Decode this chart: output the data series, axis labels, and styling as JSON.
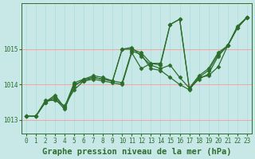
{
  "background_color": "#c8e8e8",
  "grid_color_h": "#ff9999",
  "grid_color_v": "#aadddd",
  "line_color": "#2d6e2d",
  "marker_style": "D",
  "marker_size": 2.5,
  "line_width": 0.9,
  "title": "Graphe pression niveau de la mer (hPa)",
  "title_fontsize": 7.5,
  "tick_fontsize": 5.5,
  "label_color": "#2d6e2d",
  "xlim": [
    -0.5,
    23.5
  ],
  "ylim": [
    1012.6,
    1016.3
  ],
  "yticks": [
    1013,
    1014,
    1015
  ],
  "xticks": [
    0,
    1,
    2,
    3,
    4,
    5,
    6,
    7,
    8,
    9,
    10,
    11,
    12,
    13,
    14,
    15,
    16,
    17,
    18,
    19,
    20,
    21,
    22,
    23
  ],
  "series": [
    [
      1013.1,
      1013.1,
      1013.5,
      1013.6,
      1013.3,
      1013.95,
      1014.15,
      1014.2,
      1014.15,
      1014.1,
      1015.0,
      1015.05,
      1014.8,
      1014.55,
      1014.45,
      1014.55,
      1014.2,
      1013.9,
      1014.25,
      1014.45,
      1014.9,
      1015.1,
      1015.65,
      1015.9
    ],
    [
      1013.1,
      1013.1,
      1013.5,
      1013.65,
      1013.35,
      1014.0,
      1014.1,
      1014.2,
      1014.15,
      1014.1,
      1014.05,
      1014.95,
      1014.85,
      1014.45,
      1014.4,
      1014.2,
      1014.0,
      1013.85,
      1014.2,
      1014.4,
      1014.85,
      1015.1,
      1015.6,
      1015.9
    ],
    [
      1013.1,
      1013.1,
      1013.55,
      1013.55,
      1013.4,
      1013.85,
      1014.1,
      1014.15,
      1014.1,
      1014.05,
      1014.0,
      1014.9,
      1014.45,
      1014.6,
      1014.55,
      1015.7,
      1015.85,
      1013.88,
      1014.15,
      1014.3,
      1014.8,
      1015.1,
      1015.6,
      1015.9
    ],
    [
      1013.1,
      1013.1,
      1013.5,
      1013.7,
      1013.35,
      1014.05,
      1014.15,
      1014.25,
      1014.2,
      1014.1,
      1015.0,
      1015.0,
      1014.9,
      1014.6,
      1014.6,
      1015.7,
      1015.85,
      1013.88,
      1014.2,
      1014.25,
      1014.5,
      1015.1,
      1015.6,
      1015.9
    ]
  ]
}
